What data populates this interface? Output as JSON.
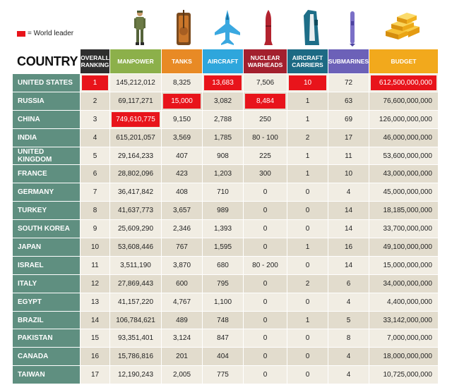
{
  "legend": {
    "label": "= World leader",
    "color": "#e8141b"
  },
  "colors": {
    "country_bg": "#5f8f80",
    "row_light": "#f1ede3",
    "row_dark": "#e2dccd",
    "leader": "#e8141b"
  },
  "chart_data": {
    "type": "table",
    "title": "COUNTRY",
    "columns": [
      {
        "key": "rank",
        "label": "OVERALL RANKING",
        "color": "#2e2e2e",
        "icon": ""
      },
      {
        "key": "manpower",
        "label": "MANPOWER",
        "color": "#8cb04a",
        "icon": "soldier-icon"
      },
      {
        "key": "tanks",
        "label": "TANKS",
        "color": "#e88a25",
        "icon": "tank-icon"
      },
      {
        "key": "aircraft",
        "label": "AIRCRAFT",
        "color": "#2ea6dc",
        "icon": "fighter-jet-icon"
      },
      {
        "key": "nuclear",
        "label": "NUCLEAR WARHEADS",
        "color": "#a3202e",
        "icon": "warhead-icon"
      },
      {
        "key": "carriers",
        "label": "AIRCRAFT CARRIERS",
        "color": "#1d6a84",
        "icon": "aircraft-carrier-icon"
      },
      {
        "key": "submarines",
        "label": "SUBMARINES",
        "color": "#6c61b8",
        "icon": "submarine-icon"
      },
      {
        "key": "budget",
        "label": "BUDGET",
        "color": "#f2a91c",
        "icon": "gold-bars-icon"
      }
    ],
    "rows": [
      {
        "country": "UNITED STATES",
        "rank": "1",
        "manpower": "145,212,012",
        "tanks": "8,325",
        "aircraft": "13,683",
        "nuclear": "7,506",
        "carriers": "10",
        "submarines": "72",
        "budget": "612,500,000,000",
        "leaders": [
          "rank",
          "aircraft",
          "carriers",
          "budget"
        ]
      },
      {
        "country": "RUSSIA",
        "rank": "2",
        "manpower": "69,117,271",
        "tanks": "15,000",
        "aircraft": "3,082",
        "nuclear": "8,484",
        "carriers": "1",
        "submarines": "63",
        "budget": "76,600,000,000",
        "leaders": [
          "tanks",
          "nuclear"
        ]
      },
      {
        "country": "CHINA",
        "rank": "3",
        "manpower": "749,610,775",
        "tanks": "9,150",
        "aircraft": "2,788",
        "nuclear": "250",
        "carriers": "1",
        "submarines": "69",
        "budget": "126,000,000,000",
        "leaders": [
          "manpower"
        ]
      },
      {
        "country": "INDIA",
        "rank": "4",
        "manpower": "615,201,057",
        "tanks": "3,569",
        "aircraft": "1,785",
        "nuclear": "80 - 100",
        "carriers": "2",
        "submarines": "17",
        "budget": "46,000,000,000",
        "leaders": []
      },
      {
        "country": "UNITED KINGDOM",
        "rank": "5",
        "manpower": "29,164,233",
        "tanks": "407",
        "aircraft": "908",
        "nuclear": "225",
        "carriers": "1",
        "submarines": "11",
        "budget": "53,600,000,000",
        "leaders": []
      },
      {
        "country": "FRANCE",
        "rank": "6",
        "manpower": "28,802,096",
        "tanks": "423",
        "aircraft": "1,203",
        "nuclear": "300",
        "carriers": "1",
        "submarines": "10",
        "budget": "43,000,000,000",
        "leaders": []
      },
      {
        "country": "GERMANY",
        "rank": "7",
        "manpower": "36,417,842",
        "tanks": "408",
        "aircraft": "710",
        "nuclear": "0",
        "carriers": "0",
        "submarines": "4",
        "budget": "45,000,000,000",
        "leaders": []
      },
      {
        "country": "TURKEY",
        "rank": "8",
        "manpower": "41,637,773",
        "tanks": "3,657",
        "aircraft": "989",
        "nuclear": "0",
        "carriers": "0",
        "submarines": "14",
        "budget": "18,185,000,000",
        "leaders": []
      },
      {
        "country": "SOUTH KOREA",
        "rank": "9",
        "manpower": "25,609,290",
        "tanks": "2,346",
        "aircraft": "1,393",
        "nuclear": "0",
        "carriers": "0",
        "submarines": "14",
        "budget": "33,700,000,000",
        "leaders": []
      },
      {
        "country": "JAPAN",
        "rank": "10",
        "manpower": "53,608,446",
        "tanks": "767",
        "aircraft": "1,595",
        "nuclear": "0",
        "carriers": "1",
        "submarines": "16",
        "budget": "49,100,000,000",
        "leaders": []
      },
      {
        "country": "ISRAEL",
        "rank": "11",
        "manpower": "3,511,190",
        "tanks": "3,870",
        "aircraft": "680",
        "nuclear": "80 - 200",
        "carriers": "0",
        "submarines": "14",
        "budget": "15,000,000,000",
        "leaders": []
      },
      {
        "country": "ITALY",
        "rank": "12",
        "manpower": "27,869,443",
        "tanks": "600",
        "aircraft": "795",
        "nuclear": "0",
        "carriers": "2",
        "submarines": "6",
        "budget": "34,000,000,000",
        "leaders": []
      },
      {
        "country": "EGYPT",
        "rank": "13",
        "manpower": "41,157,220",
        "tanks": "4,767",
        "aircraft": "1,100",
        "nuclear": "0",
        "carriers": "0",
        "submarines": "4",
        "budget": "4,400,000,000",
        "leaders": []
      },
      {
        "country": "BRAZIL",
        "rank": "14",
        "manpower": "106,784,621",
        "tanks": "489",
        "aircraft": "748",
        "nuclear": "0",
        "carriers": "1",
        "submarines": "5",
        "budget": "33,142,000,000",
        "leaders": []
      },
      {
        "country": "PAKISTAN",
        "rank": "15",
        "manpower": "93,351,401",
        "tanks": "3,124",
        "aircraft": "847",
        "nuclear": "0",
        "carriers": "0",
        "submarines": "8",
        "budget": "7,000,000,000",
        "leaders": []
      },
      {
        "country": "CANADA",
        "rank": "16",
        "manpower": "15,786,816",
        "tanks": "201",
        "aircraft": "404",
        "nuclear": "0",
        "carriers": "0",
        "submarines": "4",
        "budget": "18,000,000,000",
        "leaders": []
      },
      {
        "country": "TAIWAN",
        "rank": "17",
        "manpower": "12,190,243",
        "tanks": "2,005",
        "aircraft": "775",
        "nuclear": "0",
        "carriers": "0",
        "submarines": "4",
        "budget": "10,725,000,000",
        "leaders": []
      }
    ]
  }
}
